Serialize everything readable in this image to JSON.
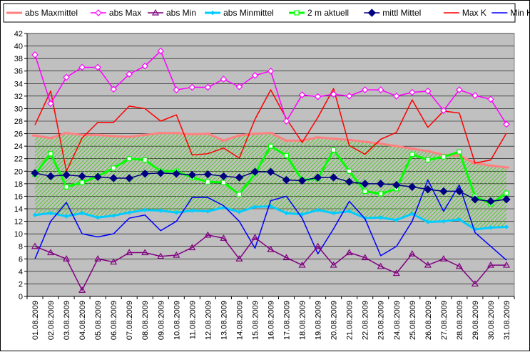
{
  "chart_data": {
    "type": "line",
    "title": "",
    "xlabel": "",
    "ylabel": "",
    "ylim": [
      0,
      42
    ],
    "y_ticks": [
      0,
      2,
      4,
      6,
      8,
      10,
      12,
      14,
      16,
      18,
      20,
      22,
      24,
      26,
      28,
      30,
      32,
      34,
      36,
      38,
      40,
      42
    ],
    "grid": "horizontal",
    "legend_position": "top",
    "plot_background": "#c0c0c0",
    "categories": [
      "01.08.2009",
      "02.08.2009",
      "03.08.2009",
      "04.08.2009",
      "05.08.2009",
      "06.08.2009",
      "07.08.2009",
      "08.08.2009",
      "09.08.2009",
      "10.08.2009",
      "11.08.2009",
      "12.08.2009",
      "13.08.2009",
      "14.08.2009",
      "15.08.2009",
      "16.08.2009",
      "17.08.2009",
      "18.08.2009",
      "19.08.2009",
      "20.08.2009",
      "21.08.2009",
      "22.08.2009",
      "23.08.2009",
      "24.08.2009",
      "25.08.2009",
      "26.08.2009",
      "27.08.2009",
      "28.08.2009",
      "29.08.2009",
      "30.08.2009",
      "31.08.2009"
    ],
    "series": [
      {
        "name": "abs Maxmittel",
        "color": "#ff8080",
        "marker": "dash",
        "values": [
          25.7,
          25.3,
          26.1,
          25.8,
          25.8,
          25.6,
          25.5,
          25.8,
          26.1,
          26.1,
          25.9,
          26.0,
          24.9,
          25.7,
          26.0,
          26.1,
          24.9,
          24.9,
          25.4,
          25.2,
          25.0,
          24.7,
          24.4,
          24.0,
          23.6,
          23.2,
          22.6,
          22.5,
          21.3,
          20.9,
          20.6
        ]
      },
      {
        "name": "abs Max",
        "color": "#ff00ff",
        "marker": "diamond-open",
        "values": [
          38.6,
          30.8,
          35.0,
          36.6,
          36.6,
          33.1,
          35.5,
          36.8,
          39.2,
          33.0,
          33.4,
          33.4,
          34.7,
          33.5,
          35.3,
          36.0,
          28.0,
          32.2,
          31.9,
          32.3,
          32.0,
          33.0,
          33.0,
          32.0,
          32.6,
          32.8,
          29.7,
          33.0,
          32.1,
          31.5,
          27.5
        ]
      },
      {
        "name": "abs Min",
        "color": "#800080",
        "marker": "triangle-open",
        "values": [
          8.0,
          7.0,
          6.0,
          1.0,
          6.0,
          5.5,
          7.0,
          7.0,
          6.4,
          6.6,
          7.8,
          9.8,
          9.3,
          6.0,
          9.4,
          7.5,
          6.2,
          5.0,
          8.0,
          5.0,
          7.0,
          6.2,
          4.8,
          3.7,
          6.8,
          5.0,
          6.0,
          4.8,
          2.0,
          5.0,
          5.0
        ]
      },
      {
        "name": "abs Minmittel",
        "color": "#00ccff",
        "marker": "diamond-small",
        "values": [
          13.0,
          13.3,
          12.8,
          13.3,
          12.6,
          12.9,
          13.4,
          13.8,
          13.7,
          13.4,
          13.7,
          13.6,
          14.2,
          13.5,
          14.3,
          14.4,
          13.3,
          13.1,
          13.8,
          13.3,
          13.6,
          12.5,
          12.6,
          12.2,
          13.2,
          11.9,
          12.0,
          12.3,
          10.7,
          11.0,
          11.1
        ]
      },
      {
        "name": "2 m aktuell",
        "color": "#00ff00",
        "marker": "square-open",
        "values": [
          19.5,
          22.8,
          17.5,
          18.2,
          19.2,
          20.5,
          22.0,
          21.8,
          20.0,
          20.0,
          19.0,
          18.3,
          18.2,
          16.3,
          19.6,
          24.0,
          22.5,
          18.6,
          18.8,
          23.4,
          20.0,
          16.8,
          16.4,
          17.2,
          22.7,
          21.8,
          22.3,
          23.1,
          16.0,
          14.8,
          16.5
        ]
      },
      {
        "name": "mittl Mittel",
        "color": "#000080",
        "marker": "diamond-filled",
        "values": [
          19.7,
          19.2,
          19.4,
          19.2,
          19.1,
          18.9,
          18.9,
          19.6,
          19.7,
          19.6,
          19.4,
          19.5,
          19.2,
          19.0,
          19.9,
          19.9,
          18.6,
          18.5,
          19.0,
          19.0,
          18.3,
          18.0,
          18.0,
          17.8,
          17.5,
          17.1,
          16.8,
          16.8,
          15.5,
          15.2,
          15.5
        ]
      },
      {
        "name": "Max K",
        "color": "#ff0000",
        "marker": "none",
        "values": [
          27.4,
          32.8,
          20.0,
          25.3,
          27.8,
          27.8,
          30.4,
          30.0,
          28.0,
          29.0,
          22.6,
          22.8,
          23.7,
          22.1,
          28.3,
          33.0,
          28.4,
          24.6,
          28.6,
          33.2,
          24.1,
          22.7,
          25.1,
          26.2,
          31.4,
          27.0,
          29.6,
          29.3,
          21.3,
          21.8,
          26.1
        ]
      },
      {
        "name": "Min K",
        "color": "#0000ff",
        "marker": "none",
        "values": [
          6.0,
          12.0,
          15.0,
          10.0,
          9.5,
          10.0,
          12.5,
          13.0,
          10.5,
          12.0,
          15.8,
          15.8,
          14.5,
          12.0,
          7.7,
          15.3,
          16.0,
          12.5,
          6.8,
          10.8,
          15.2,
          12.4,
          6.5,
          8.0,
          12.0,
          18.6,
          13.6,
          17.8,
          10.2,
          8.0,
          5.8
        ]
      }
    ]
  }
}
